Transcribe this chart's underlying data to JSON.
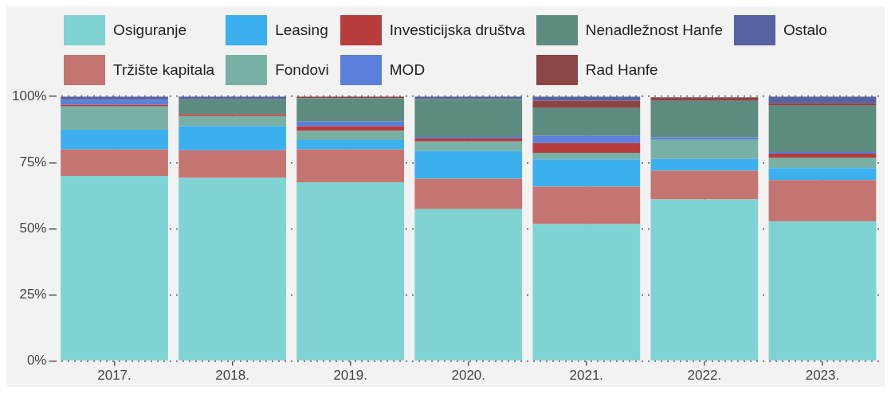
{
  "chart_data": {
    "type": "bar",
    "stacked": true,
    "categories": [
      "2017.",
      "2018.",
      "2019.",
      "2020.",
      "2021.",
      "2022.",
      "2023."
    ],
    "series": [
      {
        "name": "Osiguranje",
        "color": "#7fd3d3",
        "values": [
          70,
          69.2,
          67.6,
          57.4,
          51.8,
          61.1,
          52.8
        ]
      },
      {
        "name": "Tržište kapitala",
        "color": "#c57571",
        "values": [
          10,
          10.5,
          12.4,
          11.5,
          14.1,
          10.8,
          15.6
        ]
      },
      {
        "name": "Leasing",
        "color": "#3cb0ee",
        "values": [
          7.4,
          9.1,
          3.5,
          10.5,
          10.3,
          4.5,
          4.5
        ]
      },
      {
        "name": "Fondovi",
        "color": "#79b0a5",
        "values": [
          8.8,
          3.8,
          3.5,
          3.6,
          2.5,
          7.4,
          4
        ]
      },
      {
        "name": "Investicijska društva",
        "color": "#b73c3c",
        "values": [
          0.7,
          0.7,
          1.7,
          1.1,
          3.7,
          0,
          1.5
        ]
      },
      {
        "name": "MOD",
        "color": "#5b7fdb",
        "values": [
          1.8,
          0,
          1.8,
          0.6,
          2.7,
          0.8,
          0.6
        ]
      },
      {
        "name": "Nenadležnost Hanfe",
        "color": "#5e8b7f",
        "values": [
          0,
          5.6,
          8.8,
          14.4,
          10.5,
          13.7,
          17.5
        ]
      },
      {
        "name": "Rad Hanfe",
        "color": "#8b4545",
        "values": [
          0,
          0,
          0.7,
          0,
          2.8,
          1.4,
          0.9
        ]
      },
      {
        "name": "Ostalo",
        "color": "#5762a0",
        "values": [
          1.3,
          1.1,
          0,
          0.9,
          1.6,
          null,
          2.6
        ]
      }
    ],
    "ylim": [
      0,
      100
    ],
    "yticks": [
      {
        "value": 0,
        "label": "0%"
      },
      {
        "value": 25,
        "label": "25%"
      },
      {
        "value": 50,
        "label": "50%"
      },
      {
        "value": 75,
        "label": "75%"
      },
      {
        "value": 100,
        "label": "100%"
      }
    ],
    "grid": true,
    "legend": "top"
  }
}
